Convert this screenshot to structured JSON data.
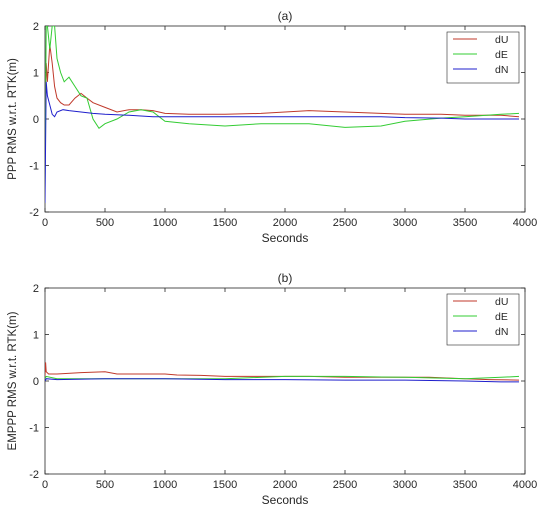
{
  "chart_data": [
    {
      "type": "line",
      "title": "(a)",
      "xlabel": "Seconds",
      "ylabel": "PPP RMS w.r.t. RTK(m)",
      "xlim": [
        0,
        4000
      ],
      "ylim": [
        -2,
        2
      ],
      "xticks": [
        0,
        500,
        1000,
        1500,
        2000,
        2500,
        3000,
        3500,
        4000
      ],
      "yticks": [
        -2,
        -1,
        0,
        1,
        2
      ],
      "legend_position": "top-right",
      "grid": false,
      "series": [
        {
          "name": "dU",
          "color": "#c0392b",
          "x": [
            0,
            10,
            20,
            40,
            60,
            80,
            100,
            130,
            160,
            200,
            250,
            300,
            350,
            400,
            500,
            600,
            700,
            800,
            900,
            1000,
            1200,
            1500,
            1800,
            2000,
            2200,
            2500,
            2800,
            3000,
            3300,
            3500,
            3800,
            3950
          ],
          "y": [
            0.2,
            1.2,
            0.8,
            1.6,
            1.2,
            0.7,
            0.45,
            0.35,
            0.3,
            0.3,
            0.45,
            0.55,
            0.45,
            0.35,
            0.25,
            0.15,
            0.2,
            0.2,
            0.18,
            0.12,
            0.1,
            0.1,
            0.12,
            0.15,
            0.18,
            0.15,
            0.12,
            0.1,
            0.1,
            0.08,
            0.08,
            0.05
          ]
        },
        {
          "name": "dE",
          "color": "#33cc33",
          "x": [
            0,
            10,
            20,
            40,
            60,
            80,
            100,
            130,
            160,
            200,
            250,
            300,
            350,
            400,
            450,
            500,
            600,
            700,
            800,
            900,
            1000,
            1200,
            1500,
            1800,
            2000,
            2200,
            2500,
            2800,
            3000,
            3300,
            3500,
            3800,
            3950
          ],
          "y": [
            -1.5,
            2.0,
            2.0,
            1.5,
            2.0,
            2.0,
            1.3,
            1.0,
            0.8,
            0.9,
            0.7,
            0.5,
            0.45,
            0.0,
            -0.2,
            -0.1,
            0.0,
            0.15,
            0.2,
            0.15,
            -0.05,
            -0.1,
            -0.15,
            -0.1,
            -0.1,
            -0.1,
            -0.18,
            -0.15,
            -0.05,
            0.02,
            0.05,
            0.1,
            0.12
          ]
        },
        {
          "name": "dN",
          "color": "#1f1fcc",
          "x": [
            0,
            10,
            20,
            40,
            60,
            80,
            100,
            150,
            200,
            300,
            400,
            500,
            700,
            900,
            1000,
            1200,
            1500,
            1800,
            2000,
            2200,
            2500,
            2800,
            3000,
            3300,
            3500,
            3800,
            3950
          ],
          "y": [
            -1.8,
            0.8,
            0.5,
            0.3,
            0.1,
            0.05,
            0.15,
            0.2,
            0.18,
            0.15,
            0.12,
            0.1,
            0.08,
            0.05,
            0.05,
            0.05,
            0.05,
            0.05,
            0.05,
            0.05,
            0.05,
            0.05,
            0.03,
            0.02,
            0.0,
            0.0,
            0.0
          ]
        }
      ]
    },
    {
      "type": "line",
      "title": "(b)",
      "xlabel": "Seconds",
      "ylabel": "EMPPP RMS w.r.t. RTK(m)",
      "xlim": [
        0,
        4000
      ],
      "ylim": [
        -2,
        2
      ],
      "xticks": [
        0,
        500,
        1000,
        1500,
        2000,
        2500,
        3000,
        3500,
        4000
      ],
      "yticks": [
        -2,
        -1,
        0,
        1,
        2
      ],
      "legend_position": "top-right",
      "grid": false,
      "series": [
        {
          "name": "dU",
          "color": "#c0392b",
          "x": [
            0,
            5,
            10,
            30,
            100,
            300,
            500,
            600,
            800,
            1000,
            1100,
            1300,
            1500,
            1800,
            2000,
            2200,
            2500,
            2800,
            3000,
            3200,
            3500,
            3700,
            3950
          ],
          "y": [
            0.1,
            0.4,
            0.2,
            0.15,
            0.15,
            0.18,
            0.2,
            0.15,
            0.15,
            0.15,
            0.13,
            0.12,
            0.1,
            0.1,
            0.1,
            0.1,
            0.08,
            0.08,
            0.08,
            0.08,
            0.05,
            0.03,
            0.02
          ]
        },
        {
          "name": "dE",
          "color": "#33cc33",
          "x": [
            0,
            10,
            100,
            500,
            1000,
            1500,
            2000,
            2500,
            3000,
            3500,
            3800,
            3950
          ],
          "y": [
            0.05,
            0.1,
            0.05,
            0.05,
            0.05,
            0.05,
            0.1,
            0.1,
            0.08,
            0.05,
            0.08,
            0.1
          ]
        },
        {
          "name": "dN",
          "color": "#1f1fcc",
          "x": [
            0,
            10,
            100,
            500,
            1000,
            1500,
            2000,
            2500,
            3000,
            3500,
            3800,
            3950
          ],
          "y": [
            0.0,
            0.05,
            0.03,
            0.05,
            0.05,
            0.03,
            0.03,
            0.02,
            0.02,
            0.0,
            -0.02,
            -0.02
          ]
        }
      ]
    }
  ]
}
